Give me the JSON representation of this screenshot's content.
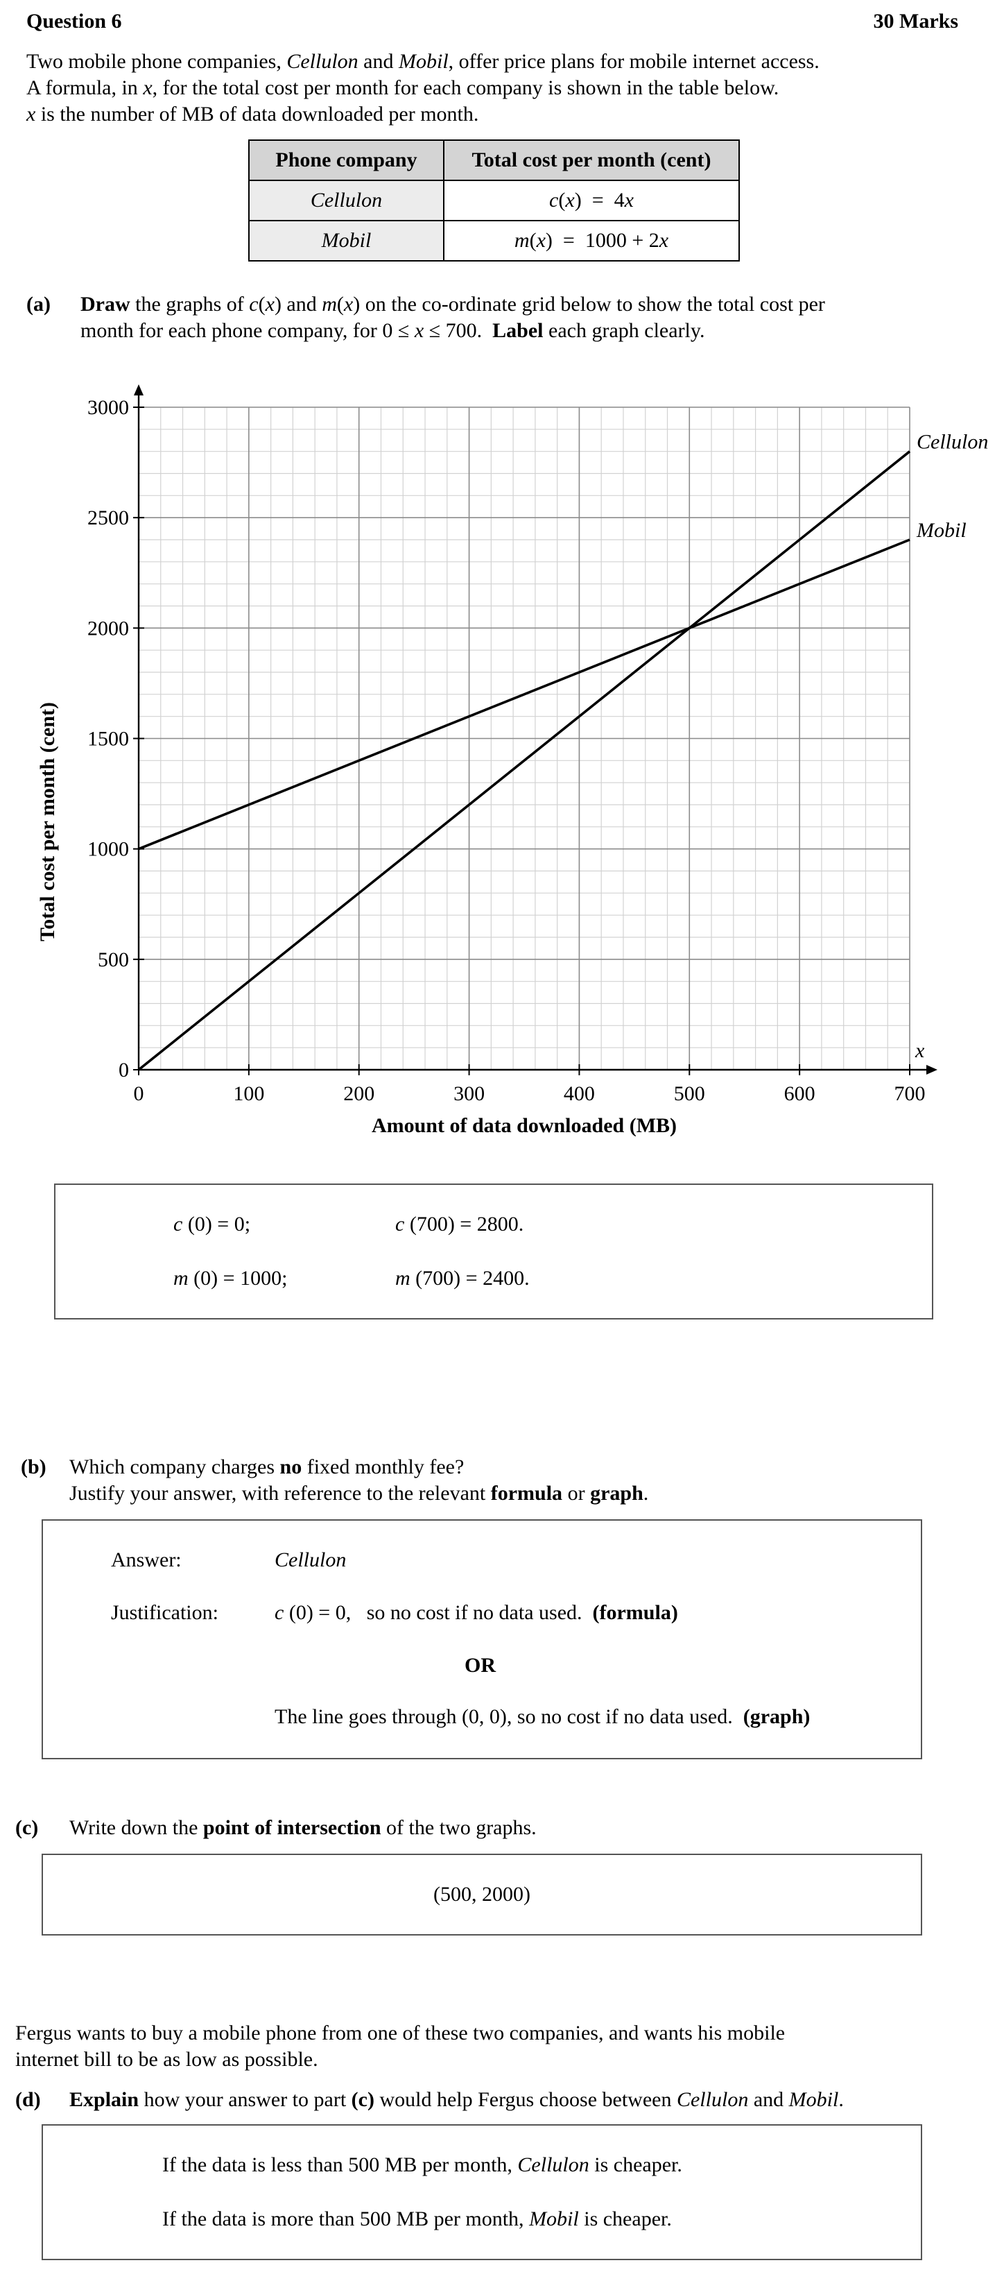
{
  "header": {
    "question": "Question 6",
    "marks": "30 Marks"
  },
  "intro": {
    "line1": "Two mobile phone companies, Cellulon and Mobil, offer price plans for mobile internet access.",
    "line2": "A formula, in x, for the total cost per month for each company is shown in the table below.",
    "line3": "x is the number of MB of data downloaded per month."
  },
  "table": {
    "col1": "Phone company",
    "col2": "Total cost per month (cent)",
    "rows": [
      {
        "company": "Cellulon",
        "formula": "c(x) = 4x"
      },
      {
        "company": "Mobil",
        "formula": "m(x) = 1000 + 2x"
      }
    ]
  },
  "part_a": {
    "label": "(a)",
    "line1": "Draw the graphs of c(x) and m(x) on the co-ordinate grid below to show the total cost per",
    "line2": "month for each phone company, for 0 ≤ x ≤ 700. Label each graph clearly.",
    "answer": {
      "c0": "c (0) = 0;",
      "c700": "c (700) = 2800.",
      "m0": "m (0) = 1000;",
      "m700": "m (700) = 2400."
    }
  },
  "chart_data": {
    "type": "line",
    "title": "",
    "xlabel": "Amount of data downloaded (MB)",
    "ylabel": "Total cost per month (cent)",
    "x_axis_symbol": "x",
    "xlim": [
      0,
      700
    ],
    "ylim": [
      0,
      3000
    ],
    "x_ticks": [
      0,
      100,
      200,
      300,
      400,
      500,
      600,
      700
    ],
    "y_ticks": [
      0,
      500,
      1000,
      1500,
      2000,
      2500,
      3000
    ],
    "grid": true,
    "series": [
      {
        "name": "Cellulon",
        "x": [
          0,
          700
        ],
        "y": [
          0,
          2800
        ]
      },
      {
        "name": "Mobil",
        "x": [
          0,
          700
        ],
        "y": [
          1000,
          2400
        ]
      }
    ]
  },
  "part_b": {
    "label": "(b)",
    "line1": "Which company charges no fixed monthly fee?",
    "line2": "Justify your answer, with reference to the relevant formula or graph.",
    "answer_label": "Answer:",
    "answer": "Cellulon",
    "justification_label": "Justification:",
    "just1": "c (0) = 0,   so no cost if no data used.",
    "just1_tag": "(formula)",
    "or": "OR",
    "just2": "The line goes through (0, 0), so no cost if no data used.",
    "just2_tag": "(graph)"
  },
  "part_c": {
    "label": "(c)",
    "question": "Write down the point of intersection of the two graphs.",
    "answer": "(500, 2000)"
  },
  "part_d": {
    "context1": "Fergus wants to buy a mobile phone from one of these two companies, and wants his mobile",
    "context2": "internet bill to be as low as possible.",
    "label": "(d)",
    "question": "Explain how your answer to part (c) would help Fergus choose between Cellulon and Mobil.",
    "answer1": "If the data is less than 500 MB per month, Cellulon is cheaper.",
    "answer2": "If the data is more than 500 MB per month, Mobil is cheaper."
  }
}
